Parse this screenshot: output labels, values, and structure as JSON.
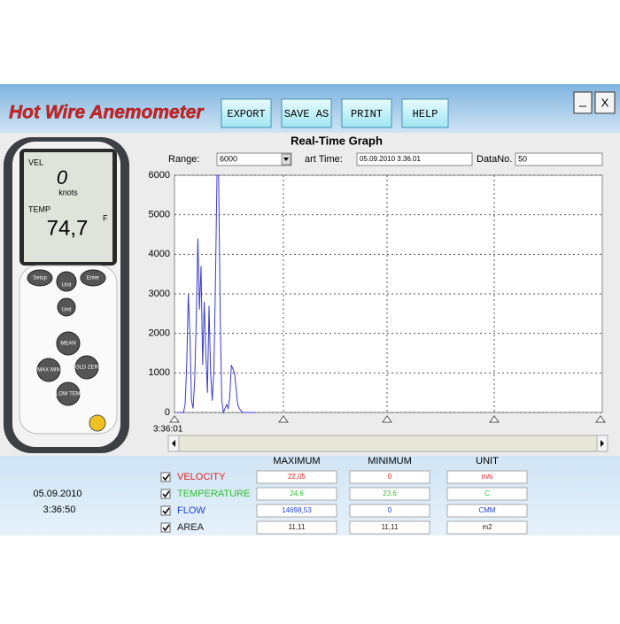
{
  "header": {
    "title": "Hot Wire Anemometer",
    "buttons": [
      "EXPORT",
      "SAVE AS",
      "PRINT",
      "HELP"
    ],
    "window_controls": [
      "_",
      "X"
    ]
  },
  "device": {
    "vel_label": "VEL",
    "vel_value": "0",
    "vel_unit": "knots",
    "temp_label": "TEMP",
    "temp_value": "74,7",
    "temp_unit": "F",
    "keys": [
      "Setup",
      "Unit",
      "Enter",
      "Unit",
      "MEAN",
      "MAX MIN",
      "HOLD ZERO",
      "FLOW TEMP"
    ]
  },
  "graph_controls": {
    "range_label": "Range:",
    "range_value": "6000",
    "start_time_label": "art Time:",
    "start_time_value": "05.09.2010 3.36.01",
    "data_no_label": "DataNo.",
    "data_no_value": "50"
  },
  "chart_data": {
    "type": "line",
    "title": "Real-Time Graph",
    "x_start_label": "3:36:01",
    "color": "#3a3ad0",
    "values": [
      0,
      0,
      0,
      0,
      0,
      200,
      1200,
      3000,
      2000,
      300,
      100,
      800,
      2400,
      4400,
      2600,
      3700,
      1200,
      2800,
      1500,
      500,
      2700,
      1000,
      300,
      1000,
      3200,
      6000,
      6000,
      2500,
      300,
      0,
      100,
      200,
      100,
      400,
      1200,
      1100,
      1000,
      600,
      200,
      100,
      50,
      0,
      0,
      0,
      0,
      0,
      0,
      0,
      0,
      0
    ],
    "ylim": [
      0,
      6000
    ],
    "yticks": [
      0,
      1000,
      2000,
      3000,
      4000,
      5000,
      6000
    ],
    "grid": true
  },
  "status": {
    "date": "05.09.2010",
    "time": "3:36:50"
  },
  "table": {
    "headers": [
      "MAXIMUM",
      "MINIMUM",
      "UNIT"
    ],
    "rows": [
      {
        "name": "VELOCITY",
        "color": "#e02020",
        "max": "22,05",
        "min": "0",
        "unit": "m/s"
      },
      {
        "name": "TEMPERATURE",
        "color": "#30c030",
        "max": "24,6",
        "min": "23,6",
        "unit": "C"
      },
      {
        "name": "FLOW",
        "color": "#2040e0",
        "max": "14698,53",
        "min": "0",
        "unit": "CMM"
      },
      {
        "name": "AREA",
        "color": "#202020",
        "max": "11,11",
        "min": "11,11",
        "unit": "m2"
      }
    ]
  }
}
